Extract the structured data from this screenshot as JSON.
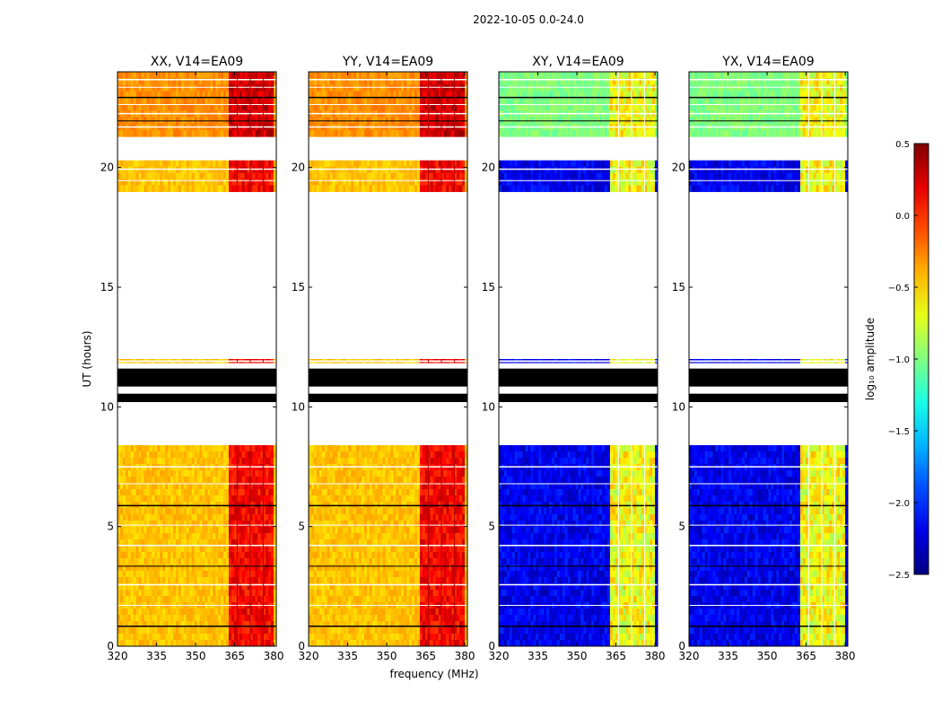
{
  "figure": {
    "suptitle": "2022-10-05 0.0-24.0",
    "xlabel": "frequency (MHz)",
    "ylabel": "UT (hours)"
  },
  "chart_data": {
    "type": "heatmap",
    "title": "2022-10-05 0.0-24.0",
    "xlabel": "frequency (MHz)",
    "ylabel": "UT (hours)",
    "xlim": [
      320,
      381
    ],
    "ylim": [
      0,
      24
    ],
    "xticks": [
      320,
      335,
      350,
      365,
      380
    ],
    "yticks": [
      0,
      5,
      10,
      15,
      20
    ],
    "panels": [
      {
        "title": "XX, V14=EA09",
        "kind": "parallel"
      },
      {
        "title": "YY, V14=EA09",
        "kind": "parallel"
      },
      {
        "title": "XY, V14=EA09",
        "kind": "cross"
      },
      {
        "title": "YX, V14=EA09",
        "kind": "cross"
      }
    ],
    "data_blocks": [
      {
        "t_start": 0.0,
        "t_end": 8.4
      },
      {
        "t_start": 11.85,
        "t_end": 12.0
      },
      {
        "t_start": 19.0,
        "t_end": 20.3
      },
      {
        "t_start": 21.3,
        "t_end": 24.0
      }
    ],
    "flagged_blocks": [
      {
        "t_start": 10.2,
        "t_end": 10.55
      },
      {
        "t_start": 10.85,
        "t_end": 11.6
      }
    ],
    "strong_band_mhz": [
      363,
      380
    ],
    "colorbar": {
      "label": "log₁₀ amplitude",
      "colormap": "jet",
      "range": [
        -2.5,
        0.5
      ],
      "ticks": [
        "0.5",
        "0.0",
        "−0.5",
        "−1.0",
        "−1.5",
        "−2.0",
        "−2.5"
      ],
      "tick_values": [
        0.5,
        0.0,
        -0.5,
        -1.0,
        -1.5,
        -2.0,
        -2.5
      ]
    }
  }
}
